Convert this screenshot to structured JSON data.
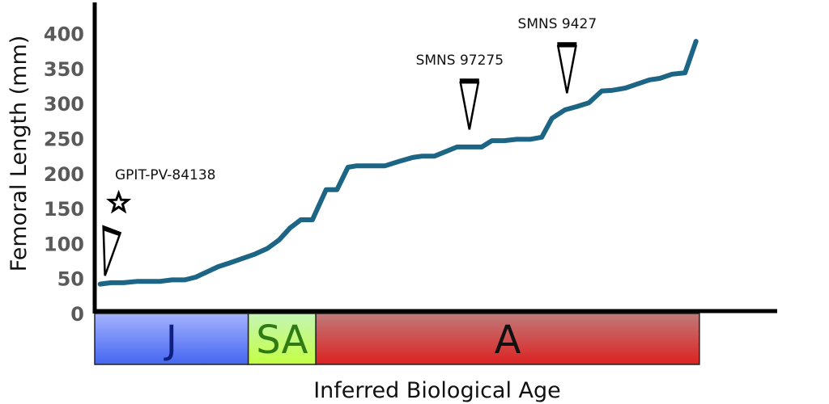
{
  "chart_data": {
    "type": "line",
    "title": "",
    "xlabel": "Inferred Biological Age",
    "ylabel": "Femoral Length (mm)",
    "xlim": [
      0,
      100
    ],
    "ylim": [
      0,
      440
    ],
    "yticks": [
      0,
      50,
      100,
      150,
      200,
      250,
      300,
      350,
      400
    ],
    "ytick_labels": [
      "0",
      "50",
      "100",
      "150",
      "200",
      "250",
      "300",
      "350",
      "400"
    ],
    "grid": false,
    "line_color": "#1d6585",
    "series": [
      {
        "name": "Femoral length",
        "x": [
          0.8,
          2.4,
          4.2,
          6.3,
          9.6,
          11.3,
          13.2,
          14.8,
          18.1,
          19.7,
          23.5,
          25.3,
          27.0,
          28.6,
          30.2,
          31.9,
          33.9,
          35.5,
          37.1,
          38.3,
          42.5,
          44.8,
          46.6,
          48.0,
          49.8,
          53.1,
          56.7,
          58.2,
          60.0,
          61.8,
          63.8,
          65.5,
          67.0,
          68.9,
          70.7,
          72.4,
          74.3,
          75.9,
          77.7,
          79.2,
          81.3,
          82.8,
          84.6,
          86.5,
          88.1
        ],
        "y": [
          42,
          44,
          44,
          46,
          46,
          48,
          48,
          52,
          67,
          72,
          85,
          93,
          105,
          122,
          134,
          134,
          177,
          177,
          209,
          211,
          211,
          218,
          223,
          225,
          225,
          238,
          238,
          247,
          247,
          249,
          249,
          252,
          279,
          291,
          296,
          301,
          318,
          319,
          322,
          327,
          334,
          336,
          342,
          344,
          389
        ]
      }
    ],
    "age_bands": [
      {
        "label": "J",
        "from": 0,
        "to": 22.5,
        "color_top": "#a4b2ff",
        "color_bottom": "#4466f0",
        "text_color": "#102080"
      },
      {
        "label": "SA",
        "from": 22.5,
        "to": 32.4,
        "color_top": "#c4f5b4",
        "color_bottom": "#c4ff44",
        "text_color": "#2f7a14"
      },
      {
        "label": "A",
        "from": 32.4,
        "to": 88.6,
        "color_top": "#c07a7a",
        "color_bottom": "#dd2222",
        "text_color": "#111111"
      }
    ],
    "annotations": [
      {
        "label": "GPIT-PV-84138",
        "x": 1.5,
        "y": 54,
        "marker": "triangle+star"
      },
      {
        "label": "SMNS 97275",
        "x": 54.9,
        "y": 263,
        "marker": "triangle"
      },
      {
        "label": "SMNS 9427",
        "x": 69.2,
        "y": 315,
        "marker": "triangle"
      }
    ]
  }
}
